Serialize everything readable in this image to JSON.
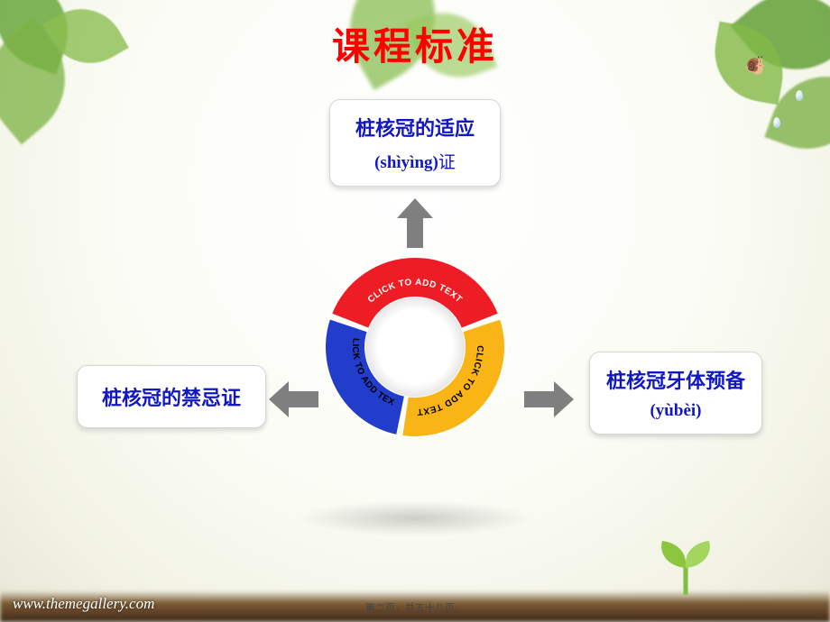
{
  "title": {
    "text": "课程标准",
    "color": "#ff0000",
    "fontsize": 42
  },
  "card_text_color": "#1118c0",
  "cards": {
    "top": {
      "line1": "桩核冠的适应",
      "pinyin": "(shìyìng)",
      "tail": "证"
    },
    "left": {
      "line1": "桩核冠的禁忌",
      "tail": "证"
    },
    "right": {
      "line1": "桩核冠牙体预备",
      "pinyin": "(yùbèi)"
    }
  },
  "ring": {
    "outer_radius": 100,
    "inner_radius": 55,
    "gap_color": "#ffffff",
    "center_fill": "#ffffff",
    "center_shadow": "rgba(0,0,0,0.15)",
    "segments": [
      {
        "id": "top",
        "color": "#ee1c25",
        "label": "CLICK TO ADD TEXT",
        "label_color": "#ffffff",
        "start": -160,
        "end": -20
      },
      {
        "id": "right",
        "color": "#f9b515",
        "label": "CLICK TO ADD TEXT",
        "label_color": "#000000",
        "start": -20,
        "end": 100
      },
      {
        "id": "left",
        "color": "#223ccb",
        "label": "CLICK TO ADD TEXT",
        "label_color": "#000000",
        "start": 100,
        "end": 200
      }
    ]
  },
  "arrow_color": "#7f7f7f",
  "footer": {
    "url": "www.themegallery.com",
    "page": "第二页，共五十八页。"
  },
  "background": {
    "gradient_inner": "#ffffff",
    "gradient_outer": "#e8e7d6",
    "leaf_colors": [
      "#7ab241",
      "#8cc050",
      "#6aa83c"
    ],
    "soil_color": "#6a4a2d"
  }
}
